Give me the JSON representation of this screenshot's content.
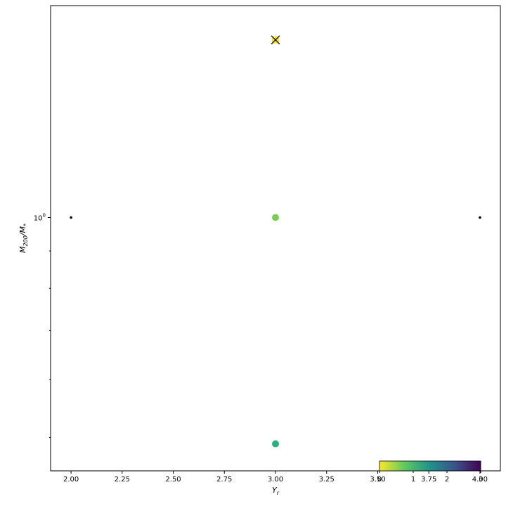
{
  "chart_data": {
    "type": "scatter",
    "title": "",
    "xlabel": "Y_r",
    "ylabel": "M_200/M_*",
    "xlim": [
      1.9,
      4.1
    ],
    "ylim": [
      0.45,
      1.95
    ],
    "yscale": "log",
    "x_ticks": [
      "2.00",
      "2.25",
      "2.50",
      "2.75",
      "3.00",
      "3.25",
      "3.50",
      "3.75",
      "4.00"
    ],
    "y_tick_label": "10^0",
    "grid": false,
    "points": [
      {
        "x": 2.0,
        "y": 1.0,
        "style": "small-black-dot"
      },
      {
        "x": 4.0,
        "y": 1.0,
        "style": "small-black-dot"
      },
      {
        "x": 3.0,
        "y": 1.0,
        "color": "#7ad151",
        "style": "colored-circle"
      },
      {
        "x": 3.0,
        "y": 0.49,
        "color": "#2ab07f",
        "style": "colored-circle"
      },
      {
        "x": 3.0,
        "y": 1.75,
        "color": "#fde725",
        "style": "colored-square-with-x"
      }
    ],
    "colorbar": {
      "colormap": "viridis_r",
      "placement": "inset bottom-right",
      "tick_labels": [
        "0",
        "1",
        "2",
        "3"
      ],
      "colors": [
        "#fde725",
        "#5ec962",
        "#21918c",
        "#3b528b",
        "#440154"
      ]
    }
  }
}
